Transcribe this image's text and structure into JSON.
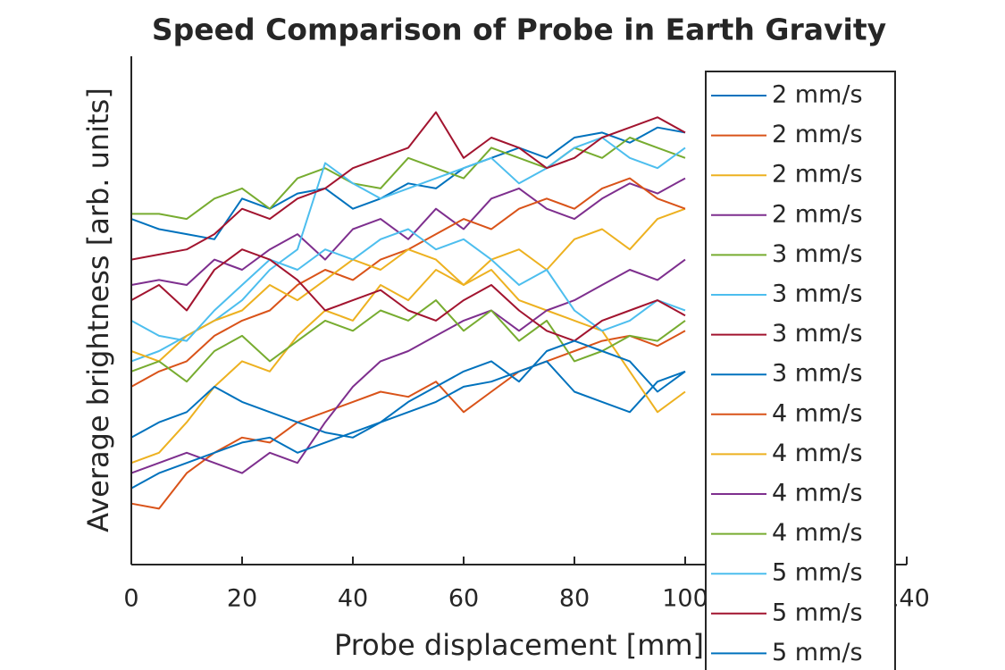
{
  "chart_data": {
    "type": "line",
    "title": "Speed Comparison of Probe in Earth Gravity",
    "xlabel": "Probe displacement [mm]",
    "ylabel": "Average brightness [arb. units]",
    "x": [
      0,
      5,
      10,
      15,
      20,
      25,
      30,
      35,
      40,
      45,
      50,
      55,
      60,
      65,
      70,
      75,
      80,
      85,
      90,
      95,
      100
    ],
    "xlim": [
      0,
      140
    ],
    "xticks": [
      0,
      20,
      40,
      60,
      80,
      100,
      120,
      140
    ],
    "ylim": [
      0,
      1
    ],
    "legend": "northeast",
    "series": [
      {
        "name": "2 mm/s",
        "color": "#0072BD",
        "values": [
          0.68,
          0.66,
          0.65,
          0.64,
          0.72,
          0.7,
          0.73,
          0.74,
          0.7,
          0.72,
          0.75,
          0.74,
          0.78,
          0.8,
          0.82,
          0.8,
          0.84,
          0.85,
          0.83,
          0.86,
          0.85
        ]
      },
      {
        "name": "2 mm/s",
        "color": "#D95319",
        "values": [
          0.12,
          0.11,
          0.18,
          0.22,
          0.25,
          0.24,
          0.28,
          0.3,
          0.32,
          0.34,
          0.33,
          0.36,
          0.3,
          0.34,
          0.38,
          0.4,
          0.42,
          0.44,
          0.45,
          0.43,
          0.46
        ]
      },
      {
        "name": "2 mm/s",
        "color": "#EDB120",
        "values": [
          0.2,
          0.22,
          0.28,
          0.35,
          0.4,
          0.38,
          0.45,
          0.5,
          0.48,
          0.55,
          0.52,
          0.58,
          0.55,
          0.6,
          0.62,
          0.58,
          0.64,
          0.66,
          0.62,
          0.68,
          0.7
        ]
      },
      {
        "name": "2 mm/s",
        "color": "#7E2F8E",
        "values": [
          0.55,
          0.56,
          0.55,
          0.6,
          0.58,
          0.62,
          0.65,
          0.6,
          0.66,
          0.68,
          0.64,
          0.7,
          0.66,
          0.72,
          0.74,
          0.7,
          0.68,
          0.72,
          0.75,
          0.73,
          0.76
        ]
      },
      {
        "name": "3 mm/s",
        "color": "#77AC30",
        "values": [
          0.69,
          0.69,
          0.68,
          0.72,
          0.74,
          0.7,
          0.76,
          0.78,
          0.75,
          0.74,
          0.8,
          0.78,
          0.76,
          0.82,
          0.8,
          0.78,
          0.82,
          0.8,
          0.84,
          0.82,
          0.8
        ]
      },
      {
        "name": "3 mm/s",
        "color": "#4DBEEE",
        "values": [
          0.4,
          0.42,
          0.45,
          0.48,
          0.52,
          0.58,
          0.62,
          0.79,
          0.75,
          0.72,
          0.74,
          0.76,
          0.78,
          0.8,
          0.75,
          0.78,
          0.82,
          0.84,
          0.8,
          0.78,
          0.82
        ]
      },
      {
        "name": "3 mm/s",
        "color": "#A2142F",
        "values": [
          0.6,
          0.61,
          0.62,
          0.65,
          0.7,
          0.68,
          0.72,
          0.74,
          0.78,
          0.8,
          0.82,
          0.89,
          0.8,
          0.84,
          0.82,
          0.78,
          0.8,
          0.84,
          0.86,
          0.88,
          0.85
        ]
      },
      {
        "name": "3 mm/s",
        "color": "#0072BD",
        "values": [
          0.25,
          0.28,
          0.3,
          0.35,
          0.32,
          0.3,
          0.28,
          0.26,
          0.25,
          0.28,
          0.3,
          0.32,
          0.35,
          0.36,
          0.38,
          0.4,
          0.34,
          0.32,
          0.3,
          0.36,
          0.38
        ]
      },
      {
        "name": "4 mm/s",
        "color": "#D95319",
        "values": [
          0.35,
          0.38,
          0.4,
          0.45,
          0.48,
          0.5,
          0.55,
          0.58,
          0.56,
          0.6,
          0.62,
          0.65,
          0.68,
          0.66,
          0.7,
          0.72,
          0.7,
          0.74,
          0.76,
          0.72,
          0.7
        ]
      },
      {
        "name": "4 mm/s",
        "color": "#EDB120",
        "values": [
          0.42,
          0.4,
          0.45,
          0.48,
          0.5,
          0.55,
          0.52,
          0.56,
          0.6,
          0.58,
          0.62,
          0.6,
          0.55,
          0.58,
          0.52,
          0.5,
          0.48,
          0.46,
          0.38,
          0.3,
          0.34
        ]
      },
      {
        "name": "4 mm/s",
        "color": "#7E2F8E",
        "values": [
          0.18,
          0.2,
          0.22,
          0.2,
          0.18,
          0.22,
          0.2,
          0.28,
          0.35,
          0.4,
          0.42,
          0.45,
          0.48,
          0.5,
          0.46,
          0.5,
          0.52,
          0.55,
          0.58,
          0.56,
          0.6
        ]
      },
      {
        "name": "4 mm/s",
        "color": "#77AC30",
        "values": [
          0.38,
          0.4,
          0.36,
          0.42,
          0.45,
          0.4,
          0.44,
          0.48,
          0.46,
          0.5,
          0.48,
          0.52,
          0.46,
          0.5,
          0.44,
          0.48,
          0.4,
          0.42,
          0.45,
          0.44,
          0.48
        ]
      },
      {
        "name": "5 mm/s",
        "color": "#4DBEEE",
        "values": [
          0.48,
          0.45,
          0.44,
          0.5,
          0.55,
          0.6,
          0.58,
          0.62,
          0.6,
          0.64,
          0.66,
          0.62,
          0.64,
          0.6,
          0.55,
          0.58,
          0.5,
          0.46,
          0.48,
          0.52,
          0.5
        ]
      },
      {
        "name": "5 mm/s",
        "color": "#A2142F",
        "values": [
          0.52,
          0.55,
          0.5,
          0.58,
          0.62,
          0.6,
          0.56,
          0.5,
          0.52,
          0.54,
          0.5,
          0.48,
          0.52,
          0.55,
          0.5,
          0.46,
          0.44,
          0.48,
          0.5,
          0.52,
          0.49
        ]
      },
      {
        "name": "5 mm/s",
        "color": "#0072BD",
        "values": [
          0.15,
          0.18,
          0.2,
          0.22,
          0.24,
          0.25,
          0.22,
          0.24,
          0.26,
          0.28,
          0.32,
          0.35,
          0.38,
          0.4,
          0.36,
          0.42,
          0.44,
          0.42,
          0.4,
          0.34,
          0.38
        ]
      }
    ]
  }
}
